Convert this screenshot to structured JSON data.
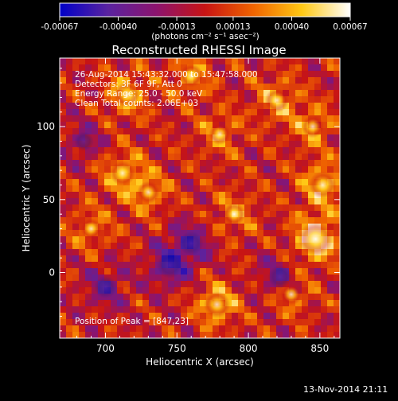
{
  "chart_data": {
    "type": "heatmap",
    "title": "Reconstructed RHESSI Image",
    "xlabel": "Heliocentric X (arcsec)",
    "ylabel": "Heliocentric Y (arcsec)",
    "xlim": [
      668,
      864
    ],
    "ylim": [
      -45,
      147
    ],
    "x_ticks": [
      700,
      750,
      800,
      850
    ],
    "y_ticks": [
      0,
      50,
      100
    ],
    "grid": false,
    "colorbar": {
      "position": "top",
      "range": [
        -0.00067,
        0.00067
      ],
      "ticks": [
        "-0.00067",
        "-0.00040",
        "-0.00013",
        "0.00013",
        "0.00040",
        "0.00067"
      ],
      "tick_values": [
        -0.00067,
        -0.0004,
        -0.00013,
        0.00013,
        0.0004,
        0.00067
      ],
      "label": "(photons cm⁻² s⁻¹ asec⁻²)",
      "colors": [
        "#0000c8",
        "#5a23a0",
        "#8c146e",
        "#c81414",
        "#f06400",
        "#ffc814",
        "#ffffff"
      ]
    },
    "annotations": [
      "26-Aug-2014 15:43:32.000 to 15:47:58.000",
      "Detectors: 3F 6F 9F, Att 0",
      "Energy Range: 25.0 - 50.0 keV",
      "Clean    Total counts: 2.06E+03"
    ],
    "peak_label": "Position of Peak = [847,23]",
    "peak": {
      "x": 847,
      "y": 23
    },
    "blobs": [
      {
        "x": 847,
        "y": 23,
        "value": 0.00067
      },
      {
        "x": 852,
        "y": 60,
        "value": 0.00045
      },
      {
        "x": 715,
        "y": 122,
        "value": 0.0004
      },
      {
        "x": 778,
        "y": -22,
        "value": 0.00042
      },
      {
        "x": 820,
        "y": 118,
        "value": 0.00035
      },
      {
        "x": 730,
        "y": 55,
        "value": 0.0003
      },
      {
        "x": 712,
        "y": 68,
        "value": 0.00038
      },
      {
        "x": 760,
        "y": 135,
        "value": 0.00032
      },
      {
        "x": 845,
        "y": 100,
        "value": 0.0003
      },
      {
        "x": 780,
        "y": 95,
        "value": 0.00028
      },
      {
        "x": 790,
        "y": 40,
        "value": 0.0003
      },
      {
        "x": 690,
        "y": 30,
        "value": 0.00025
      },
      {
        "x": 830,
        "y": -15,
        "value": 0.00028
      },
      {
        "x": 745,
        "y": 5,
        "value": -0.0004
      },
      {
        "x": 700,
        "y": -10,
        "value": -0.0003
      },
      {
        "x": 760,
        "y": 20,
        "value": -0.00035
      },
      {
        "x": 822,
        "y": -3,
        "value": -0.00032
      },
      {
        "x": 685,
        "y": 90,
        "value": -0.0002
      }
    ]
  },
  "footer": {
    "timestamp": "13-Nov-2014 21:11"
  }
}
